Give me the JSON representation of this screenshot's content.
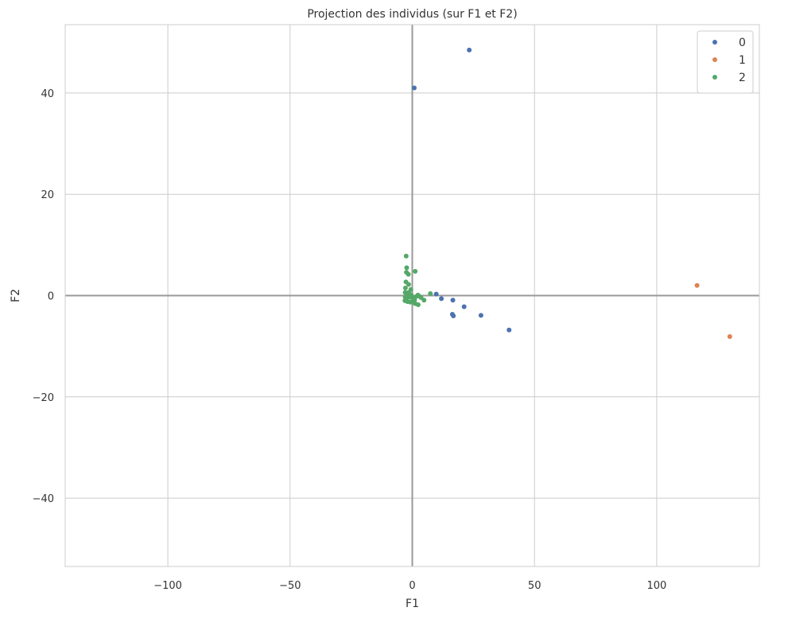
{
  "chart_data": {
    "type": "scatter",
    "title": "Projection des individus (sur F1 et F2)",
    "xlabel": "F1",
    "ylabel": "F2",
    "xlim": [
      -142,
      142
    ],
    "ylim": [
      -53.5,
      53.5
    ],
    "xticks": [
      -100,
      -50,
      0,
      50,
      100
    ],
    "yticks": [
      -40,
      -20,
      0,
      20,
      40
    ],
    "xtick_labels": [
      "−100",
      "−50",
      "0",
      "50",
      "100"
    ],
    "ytick_labels": [
      "−40",
      "−20",
      "0",
      "20",
      "40"
    ],
    "grid": true,
    "reference_lines": [
      {
        "axis": "x",
        "value": 0
      },
      {
        "axis": "y",
        "value": 0
      }
    ],
    "legend_position": "top-right",
    "series": [
      {
        "name": "0",
        "color": "#4c72b0",
        "points": [
          [
            23.3,
            48.5
          ],
          [
            0.8,
            41.0
          ],
          [
            9.8,
            0.3
          ],
          [
            11.9,
            -0.6
          ],
          [
            16.6,
            -0.9
          ],
          [
            21.2,
            -2.2
          ],
          [
            16.4,
            -3.7
          ],
          [
            16.8,
            -4.0
          ],
          [
            28.1,
            -3.9
          ],
          [
            39.6,
            -6.8
          ]
        ]
      },
      {
        "name": "1",
        "color": "#dd8452",
        "points": [
          [
            116.5,
            2.0
          ],
          [
            129.9,
            -8.1
          ]
        ]
      },
      {
        "name": "2",
        "color": "#55a868",
        "points": [
          [
            -2.5,
            7.8
          ],
          [
            -2.3,
            5.5
          ],
          [
            1.2,
            4.8
          ],
          [
            -2.4,
            4.6
          ],
          [
            -1.6,
            4.2
          ],
          [
            -2.6,
            2.7
          ],
          [
            -1.5,
            2.2
          ],
          [
            -0.6,
            1.2
          ],
          [
            -2.8,
            1.5
          ],
          [
            -2.9,
            0.6
          ],
          [
            -2.2,
            0.2
          ],
          [
            -2.9,
            -0.3
          ],
          [
            -2.4,
            -0.8
          ],
          [
            -1.9,
            -1.2
          ],
          [
            -0.8,
            -1.3
          ],
          [
            -0.4,
            0.1
          ],
          [
            0.4,
            -0.5
          ],
          [
            0.9,
            -0.9
          ],
          [
            1.6,
            -0.2
          ],
          [
            2.3,
            0.1
          ],
          [
            2.8,
            -0.1
          ],
          [
            3.6,
            -0.4
          ],
          [
            4.8,
            -0.9
          ],
          [
            7.4,
            0.4
          ],
          [
            2.4,
            -1.8
          ],
          [
            1.2,
            -1.6
          ],
          [
            -1.1,
            -0.3
          ],
          [
            -3.0,
            -1.0
          ],
          [
            -1.5,
            0.6
          ],
          [
            0.0,
            -1.1
          ]
        ]
      }
    ]
  }
}
